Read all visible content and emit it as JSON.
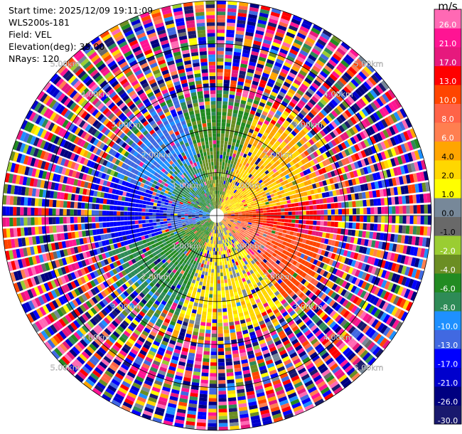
{
  "header": {
    "start_time": "Start time: 2025/12/09 19:11:09",
    "instrument": "WLS200s-181",
    "field": "Field: VEL",
    "elevation": "Elevation(deg): 35.00",
    "nrays": "NRays: 120"
  },
  "colorbar": {
    "unit": "m/s",
    "colors": [
      "#19196e",
      "#000080",
      "#0000cd",
      "#0000ff",
      "#4169e1",
      "#1e90ff",
      "#2e8b57",
      "#228b22",
      "#6b8e23",
      "#9acd32",
      "#696969",
      "#778899",
      "#ffff00",
      "#ffd700",
      "#ffa500",
      "#ff7f50",
      "#ff6347",
      "#ff4500",
      "#ff0000",
      "#e6197d",
      "#ff1493",
      "#ff69b4"
    ],
    "ticks": [
      "-30.0",
      "-26.0",
      "-21.0",
      "-17.0",
      "-13.0",
      "-10.0",
      "-8.0",
      "-6.0",
      "-4.0",
      "-2.0",
      "-1.0",
      "0.0",
      "1.0",
      "2.0",
      "4.0",
      "6.0",
      "8.0",
      "10.0",
      "13.0",
      "17.0",
      "21.0",
      "26.0"
    ]
  },
  "chart_data": {
    "type": "ppi",
    "field": "VEL",
    "units": "m/s",
    "elevation_deg": 35.0,
    "n_rays": 120,
    "range_rings_km": [
      1.0,
      2.0,
      3.0,
      4.0,
      5.0
    ],
    "range_ring_labels": [
      "1.00km",
      "2.00km",
      "3.00km",
      "4.00km",
      "5.00km"
    ],
    "max_range_km": 5.0,
    "color_levels": [
      -30.0,
      -26.0,
      -21.0,
      -17.0,
      -13.0,
      -10.0,
      -8.0,
      -6.0,
      -4.0,
      -2.0,
      -1.0,
      0.0,
      1.0,
      2.0,
      4.0,
      6.0,
      8.0,
      10.0,
      13.0,
      17.0,
      21.0,
      26.0,
      30.0
    ],
    "velocity_pattern": {
      "description_of_sectors_deg_from_north": [
        {
          "azimuth_from": 20,
          "azimuth_to": 80,
          "approx_velocity": 4.0
        },
        {
          "azimuth_from": 80,
          "azimuth_to": 100,
          "approx_velocity": 15.0
        },
        {
          "azimuth_from": 100,
          "azimuth_to": 140,
          "approx_velocity": 10.0
        },
        {
          "azimuth_from": 140,
          "azimuth_to": 200,
          "approx_velocity": 2.0
        },
        {
          "azimuth_from": 200,
          "azimuth_to": 250,
          "approx_velocity": -6.0
        },
        {
          "azimuth_from": 250,
          "azimuth_to": 290,
          "approx_velocity": -14.0
        },
        {
          "azimuth_from": 290,
          "azimuth_to": 340,
          "approx_velocity": -9.0
        },
        {
          "azimuth_from": 340,
          "azimuth_to": 380,
          "approx_velocity": -4.0
        }
      ],
      "coherent_range_km": 2.5
    }
  }
}
